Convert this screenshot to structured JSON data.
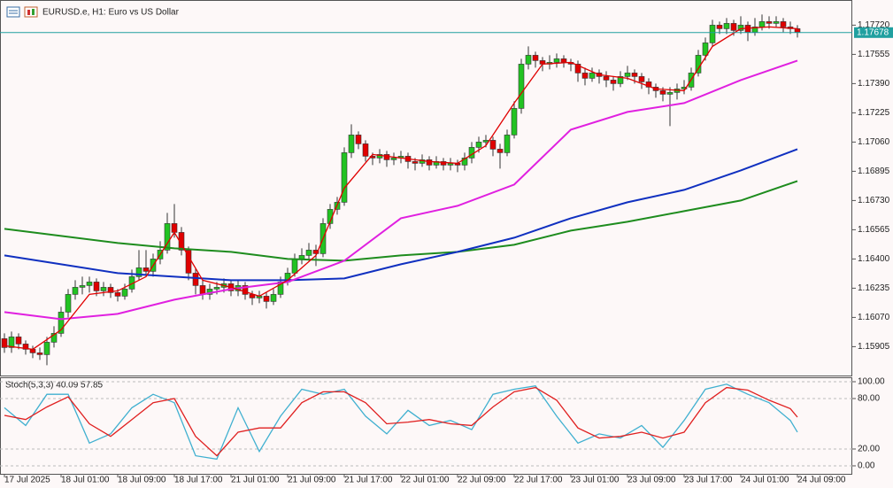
{
  "chart_data": [
    {
      "type": "candlestick",
      "title": "EURUSD.e, H1:  Euro vs US Dollar",
      "up_color": "#22c322",
      "down_color": "#e00000",
      "ohlc": [
        [
          1.1595,
          1.1598,
          1.1587,
          1.159
        ],
        [
          1.159,
          1.1599,
          1.1587,
          1.1596
        ],
        [
          1.1596,
          1.1598,
          1.1589,
          1.1592
        ],
        [
          1.1592,
          1.1594,
          1.1586,
          1.1589
        ],
        [
          1.1589,
          1.1591,
          1.1584,
          1.1587
        ],
        [
          1.1587,
          1.159,
          1.1583,
          1.1586
        ],
        [
          1.1586,
          1.1596,
          1.158,
          1.1593
        ],
        [
          1.1593,
          1.1602,
          1.159,
          1.1598
        ],
        [
          1.1598,
          1.1613,
          1.1596,
          1.161
        ],
        [
          1.161,
          1.1623,
          1.1607,
          1.162
        ],
        [
          1.162,
          1.1628,
          1.1617,
          1.1624
        ],
        [
          1.1624,
          1.163,
          1.162,
          1.1625
        ],
        [
          1.1625,
          1.163,
          1.1621,
          1.1627
        ],
        [
          1.1627,
          1.1629,
          1.1619,
          1.1622
        ],
        [
          1.1622,
          1.1627,
          1.1619,
          1.1624
        ],
        [
          1.1624,
          1.1626,
          1.1618,
          1.1621
        ],
        [
          1.1621,
          1.1623,
          1.1616,
          1.1619
        ],
        [
          1.1619,
          1.1626,
          1.1617,
          1.1623
        ],
        [
          1.1623,
          1.1634,
          1.1621,
          1.163
        ],
        [
          1.163,
          1.1645,
          1.1628,
          1.1635
        ],
        [
          1.1635,
          1.1645,
          1.163,
          1.1633
        ],
        [
          1.1633,
          1.1643,
          1.163,
          1.164
        ],
        [
          1.164,
          1.165,
          1.1637,
          1.1645
        ],
        [
          1.1645,
          1.1666,
          1.1643,
          1.166
        ],
        [
          1.166,
          1.1671,
          1.1652,
          1.1655
        ],
        [
          1.1655,
          1.1658,
          1.1642,
          1.1645
        ],
        [
          1.1645,
          1.1647,
          1.1628,
          1.1632
        ],
        [
          1.1632,
          1.1635,
          1.162,
          1.1625
        ],
        [
          1.1625,
          1.1628,
          1.1617,
          1.162
        ],
        [
          1.162,
          1.1626,
          1.1617,
          1.1623
        ],
        [
          1.1623,
          1.1627,
          1.162,
          1.1624
        ],
        [
          1.1624,
          1.1629,
          1.1621,
          1.1626
        ],
        [
          1.1626,
          1.1628,
          1.1619,
          1.1622
        ],
        [
          1.1622,
          1.1628,
          1.1619,
          1.1625
        ],
        [
          1.1625,
          1.1627,
          1.1617,
          1.162
        ],
        [
          1.162,
          1.1622,
          1.1614,
          1.1618
        ],
        [
          1.1618,
          1.1622,
          1.1615,
          1.1619
        ],
        [
          1.1619,
          1.1621,
          1.1612,
          1.1616
        ],
        [
          1.1616,
          1.1623,
          1.1614,
          1.162
        ],
        [
          1.162,
          1.163,
          1.1618,
          1.1627
        ],
        [
          1.1627,
          1.1635,
          1.1625,
          1.1632
        ],
        [
          1.1632,
          1.1643,
          1.163,
          1.164
        ],
        [
          1.164,
          1.1646,
          1.1637,
          1.1642
        ],
        [
          1.1642,
          1.1649,
          1.1639,
          1.1645
        ],
        [
          1.1645,
          1.1648,
          1.1636,
          1.1643
        ],
        [
          1.1643,
          1.1663,
          1.1641,
          1.166
        ],
        [
          1.166,
          1.1671,
          1.1657,
          1.1668
        ],
        [
          1.1668,
          1.1675,
          1.1665,
          1.1672
        ],
        [
          1.1672,
          1.1703,
          1.167,
          1.17
        ],
        [
          1.17,
          1.1716,
          1.1697,
          1.171
        ],
        [
          1.171,
          1.1712,
          1.1702,
          1.1705
        ],
        [
          1.1705,
          1.1707,
          1.1695,
          1.1698
        ],
        [
          1.1698,
          1.17,
          1.1693,
          1.1697
        ],
        [
          1.1697,
          1.1702,
          1.1694,
          1.1699
        ],
        [
          1.1699,
          1.1701,
          1.1692,
          1.1696
        ],
        [
          1.1696,
          1.17,
          1.1693,
          1.1697
        ],
        [
          1.1697,
          1.1701,
          1.1694,
          1.1698
        ],
        [
          1.1698,
          1.17,
          1.1691,
          1.1695
        ],
        [
          1.1695,
          1.1697,
          1.169,
          1.1694
        ],
        [
          1.1694,
          1.1699,
          1.1692,
          1.1696
        ],
        [
          1.1696,
          1.1698,
          1.169,
          1.1693
        ],
        [
          1.1693,
          1.1698,
          1.1691,
          1.1695
        ],
        [
          1.1695,
          1.1697,
          1.169,
          1.1693
        ],
        [
          1.1693,
          1.1697,
          1.169,
          1.1694
        ],
        [
          1.1694,
          1.1696,
          1.1689,
          1.1693
        ],
        [
          1.1693,
          1.17,
          1.169,
          1.1697
        ],
        [
          1.1697,
          1.1706,
          1.1694,
          1.1703
        ],
        [
          1.1703,
          1.1709,
          1.17,
          1.1706
        ],
        [
          1.1706,
          1.171,
          1.1703,
          1.1707
        ],
        [
          1.1707,
          1.1709,
          1.1698,
          1.1702
        ],
        [
          1.1702,
          1.1705,
          1.1691,
          1.17
        ],
        [
          1.17,
          1.1713,
          1.1698,
          1.171
        ],
        [
          1.171,
          1.1729,
          1.1708,
          1.1725
        ],
        [
          1.1725,
          1.1753,
          1.1722,
          1.175
        ],
        [
          1.175,
          1.176,
          1.1747,
          1.1755
        ],
        [
          1.1755,
          1.1757,
          1.1748,
          1.1752
        ],
        [
          1.1752,
          1.1754,
          1.1746,
          1.175
        ],
        [
          1.175,
          1.1755,
          1.1747,
          1.1751
        ],
        [
          1.1751,
          1.1756,
          1.1748,
          1.1753
        ],
        [
          1.1753,
          1.1755,
          1.1748,
          1.1751
        ],
        [
          1.1751,
          1.1753,
          1.1746,
          1.175
        ],
        [
          1.175,
          1.1752,
          1.174,
          1.1745
        ],
        [
          1.1745,
          1.1748,
          1.1738,
          1.1742
        ],
        [
          1.1742,
          1.1748,
          1.174,
          1.1745
        ],
        [
          1.1745,
          1.1747,
          1.1739,
          1.1743
        ],
        [
          1.1743,
          1.1746,
          1.1737,
          1.1741
        ],
        [
          1.1741,
          1.1743,
          1.1735,
          1.1739
        ],
        [
          1.1739,
          1.1746,
          1.1737,
          1.1743
        ],
        [
          1.1743,
          1.1749,
          1.1741,
          1.1745
        ],
        [
          1.1745,
          1.1747,
          1.1739,
          1.1743
        ],
        [
          1.1743,
          1.1745,
          1.1736,
          1.174
        ],
        [
          1.174,
          1.1742,
          1.1733,
          1.1737
        ],
        [
          1.1737,
          1.1739,
          1.1731,
          1.1735
        ],
        [
          1.1735,
          1.1737,
          1.1729,
          1.1733
        ],
        [
          1.1733,
          1.1737,
          1.1715,
          1.1734
        ],
        [
          1.1734,
          1.1739,
          1.173,
          1.1736
        ],
        [
          1.1736,
          1.1741,
          1.1733,
          1.1737
        ],
        [
          1.1737,
          1.1748,
          1.1735,
          1.1745
        ],
        [
          1.1745,
          1.1758,
          1.1743,
          1.1755
        ],
        [
          1.1755,
          1.1765,
          1.1752,
          1.1762
        ],
        [
          1.1762,
          1.1775,
          1.176,
          1.1772
        ],
        [
          1.1772,
          1.1774,
          1.1767,
          1.177
        ],
        [
          1.177,
          1.1776,
          1.1767,
          1.1773
        ],
        [
          1.1773,
          1.1775,
          1.1766,
          1.1769
        ],
        [
          1.1769,
          1.1777,
          1.1767,
          1.1772
        ],
        [
          1.1772,
          1.1774,
          1.1763,
          1.1768
        ],
        [
          1.1768,
          1.1776,
          1.1766,
          1.1771
        ],
        [
          1.1771,
          1.1778,
          1.1769,
          1.1774
        ],
        [
          1.1774,
          1.1777,
          1.177,
          1.1773
        ],
        [
          1.1773,
          1.1777,
          1.1771,
          1.1774
        ],
        [
          1.1774,
          1.1776,
          1.1768,
          1.1771
        ],
        [
          1.1771,
          1.1774,
          1.1767,
          1.177
        ],
        [
          1.177,
          1.1772,
          1.1765,
          1.1768
        ]
      ],
      "series": [
        {
          "color": "#1e8c1e",
          "x": [
            0,
            8,
            16,
            24,
            32,
            40,
            48,
            56,
            64,
            72,
            80,
            88,
            96,
            104,
            112
          ],
          "values": [
            1.1657,
            1.1653,
            1.1649,
            1.1646,
            1.1644,
            1.164,
            1.1639,
            1.1642,
            1.1644,
            1.1648,
            1.1656,
            1.1661,
            1.1667,
            1.1673,
            1.1684
          ]
        },
        {
          "color": "#1030c0",
          "x": [
            0,
            8,
            16,
            24,
            32,
            40,
            48,
            56,
            64,
            72,
            80,
            88,
            96,
            104,
            112
          ],
          "values": [
            1.1642,
            1.1637,
            1.1632,
            1.163,
            1.1628,
            1.1628,
            1.1629,
            1.1637,
            1.1644,
            1.1652,
            1.1663,
            1.1672,
            1.1679,
            1.169,
            1.1702
          ]
        },
        {
          "color": "#e020e0",
          "x": [
            0,
            8,
            16,
            24,
            32,
            40,
            48,
            56,
            64,
            72,
            80,
            88,
            96,
            104,
            112
          ],
          "values": [
            1.161,
            1.1606,
            1.1609,
            1.1617,
            1.1623,
            1.1627,
            1.1639,
            1.1663,
            1.167,
            1.1682,
            1.1713,
            1.1723,
            1.1728,
            1.1741,
            1.1752
          ]
        },
        {
          "color": "#e00000",
          "x": [
            0,
            4,
            8,
            12,
            16,
            20,
            24,
            28,
            32,
            36,
            40,
            44,
            48,
            52,
            56,
            60,
            64,
            68,
            72,
            76,
            80,
            84,
            88,
            92,
            96,
            100,
            104,
            108,
            112
          ],
          "values": [
            1.1591,
            1.1589,
            1.16,
            1.162,
            1.1622,
            1.163,
            1.1655,
            1.1628,
            1.1624,
            1.1619,
            1.1628,
            1.1642,
            1.168,
            1.1699,
            1.1697,
            1.1695,
            1.1694,
            1.1704,
            1.1728,
            1.175,
            1.1751,
            1.1744,
            1.1742,
            1.1736,
            1.1735,
            1.176,
            1.177,
            1.1771,
            1.177
          ]
        }
      ],
      "current_price": {
        "value": 1.17678,
        "label": "1.17678",
        "color": "#20a0a0"
      },
      "xlim": [
        -0.625,
        119.75
      ],
      "ylim": [
        1.15742,
        1.17862
      ],
      "yticks": [
        {
          "value": 1.1772,
          "label": "1.17720"
        },
        1.17555,
        {
          "value": 1.1739,
          "label": "1.17390"
        },
        1.17225,
        {
          "value": 1.1706,
          "label": "1.17060"
        },
        1.16895,
        {
          "value": 1.1673,
          "label": "1.16730"
        },
        1.16565,
        {
          "value": 1.164,
          "label": "1.16400"
        },
        1.16235,
        {
          "value": 1.1607,
          "label": "1.16070"
        },
        1.15905
      ],
      "xticks": [
        {
          "value": 0,
          "label": "17 Jul 2025"
        },
        {
          "value": 8,
          "label": "18 Jul 01:00"
        },
        {
          "value": 16,
          "label": "18 Jul 09:00"
        },
        {
          "value": 24,
          "label": "18 Jul 17:00"
        },
        {
          "value": 32,
          "label": "21 Jul 01:00"
        },
        {
          "value": 40,
          "label": "21 Jul 09:00"
        },
        {
          "value": 48,
          "label": "21 Jul 17:00"
        },
        {
          "value": 56,
          "label": "22 Jul 01:00"
        },
        {
          "value": 64,
          "label": "22 Jul 09:00"
        },
        {
          "value": 72,
          "label": "22 Jul 17:00"
        },
        {
          "value": 80,
          "label": "23 Jul 01:00"
        },
        {
          "value": 88,
          "label": "23 Jul 09:00"
        },
        {
          "value": 96,
          "label": "23 Jul 17:00"
        },
        {
          "value": 104,
          "label": "24 Jul 01:00"
        },
        {
          "value": 112,
          "label": "24 Jul 09:00"
        }
      ]
    },
    {
      "type": "line",
      "title": "Stoch(5,3,3) 40.09 57.85",
      "series": [
        {
          "color": "#40b0d0",
          "x": [
            0,
            3,
            6,
            9,
            12,
            15,
            18,
            21,
            24,
            27,
            30,
            33,
            36,
            39,
            42,
            45,
            48,
            51,
            54,
            57,
            60,
            63,
            66,
            69,
            72,
            75,
            78,
            81,
            84,
            87,
            90,
            93,
            96,
            99,
            102,
            105,
            108,
            111,
            112
          ],
          "values": [
            69,
            48,
            85,
            85,
            27,
            38,
            69,
            85,
            75,
            12,
            8,
            69,
            17,
            59,
            91,
            85,
            91,
            59,
            38,
            66,
            48,
            54,
            43,
            85,
            91,
            95,
            59,
            27,
            38,
            33,
            48,
            22,
            54,
            91,
            97,
            85,
            75,
            54,
            40.09
          ]
        },
        {
          "color": "#e02020",
          "x": [
            0,
            3,
            6,
            9,
            12,
            15,
            18,
            21,
            24,
            27,
            30,
            33,
            36,
            39,
            42,
            45,
            48,
            51,
            54,
            57,
            60,
            63,
            66,
            69,
            72,
            75,
            78,
            81,
            84,
            87,
            90,
            93,
            96,
            99,
            102,
            105,
            108,
            111,
            112
          ],
          "values": [
            60,
            55,
            70,
            82,
            50,
            35,
            55,
            75,
            80,
            35,
            12,
            40,
            45,
            45,
            75,
            88,
            88,
            75,
            50,
            52,
            55,
            50,
            48,
            70,
            88,
            93,
            78,
            45,
            33,
            35,
            40,
            33,
            40,
            75,
            93,
            90,
            78,
            68,
            57.85
          ]
        }
      ],
      "xlim": [
        -0.625,
        119.75
      ],
      "ylim": [
        -9.5,
        104.2
      ],
      "yticks": [
        {
          "value": 100,
          "label": "100.00"
        },
        {
          "value": 80,
          "label": "80.00"
        },
        {
          "value": 20,
          "label": "20.00"
        },
        {
          "value": 0,
          "label": "0.00"
        }
      ]
    }
  ]
}
